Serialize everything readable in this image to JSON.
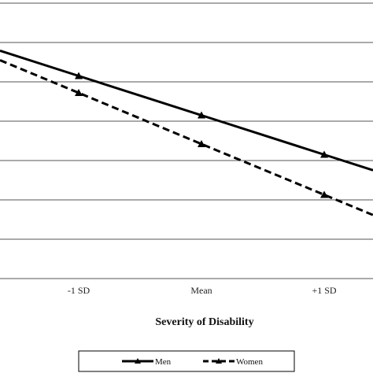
{
  "chart_data": {
    "type": "line",
    "categories": [
      "-1 SD",
      "Mean",
      "+1 SD"
    ],
    "series": [
      {
        "name": "Men",
        "values": [
          6.15,
          5.15,
          4.15
        ],
        "line_style": "solid",
        "marker": "triangle",
        "color": "#000000"
      },
      {
        "name": "Women",
        "values": [
          5.72,
          4.42,
          3.13
        ],
        "line_style": "dashed",
        "marker": "triangle",
        "color": "#000000"
      }
    ],
    "title": "",
    "xlabel": "Severity of Disability",
    "ylabel": "",
    "ylim": [
      1,
      8
    ],
    "yticks": [
      1,
      2,
      3,
      4,
      5,
      6,
      7,
      8
    ],
    "grid": true,
    "legend_position": "bottom-center"
  }
}
